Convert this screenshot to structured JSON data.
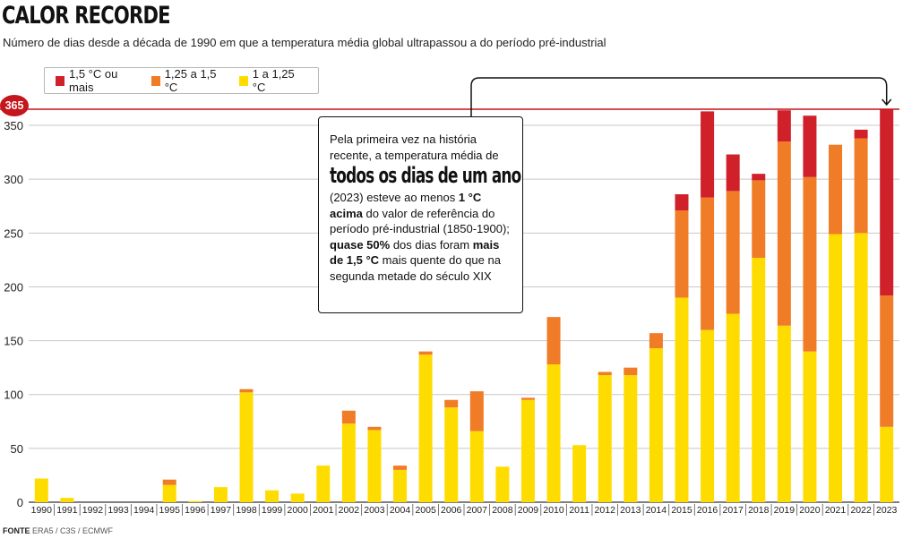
{
  "header": {
    "title": "CALOR RECORDE",
    "subtitle": "Número de dias desde a década de 1990 em que a temperatura média global ultrapassou a do período pré-industrial"
  },
  "legend": [
    {
      "label": "1,5 °C ou mais",
      "color": "#d0202a"
    },
    {
      "label": "1,25 a 1,5 °C",
      "color": "#f07c28"
    },
    {
      "label": "1 a 1,25 °C",
      "color": "#ffdc00"
    }
  ],
  "callout": {
    "line1": "Pela primeira vez na história recente, a temperatura média de",
    "big": "todos os dias de um ano",
    "p1": "(2023) esteve ao menos ",
    "b1": "1 °C acima",
    "p2": " do valor de referência do período pré-industrial (1850-1900); ",
    "b2": "quase 50%",
    "p3": " dos dias foram ",
    "b3": "mais de 1,5 °C",
    "p4": " mais quente do que na segunda metade do século XIX"
  },
  "source": {
    "label": "FONTE",
    "text": "ERA5 / C3S / ECMWF"
  },
  "chart_data": {
    "type": "bar",
    "stacked": true,
    "categories": [
      "1990",
      "1991",
      "1992",
      "1993",
      "1994",
      "1995",
      "1996",
      "1997",
      "1998",
      "1999",
      "2000",
      "2001",
      "2002",
      "2003",
      "2004",
      "2005",
      "2006",
      "2007",
      "2008",
      "2009",
      "2010",
      "2011",
      "2012",
      "2013",
      "2014",
      "2015",
      "2016",
      "2017",
      "2018",
      "2019",
      "2020",
      "2021",
      "2022",
      "2023"
    ],
    "series": [
      {
        "name": "1 a 1,25 °C",
        "color": "#ffdc00",
        "values": [
          22,
          4,
          0,
          0,
          0,
          16,
          1,
          14,
          102,
          11,
          8,
          34,
          73,
          67,
          30,
          137,
          88,
          66,
          33,
          95,
          128,
          53,
          118,
          118,
          143,
          190,
          160,
          175,
          227,
          164,
          140,
          249,
          250,
          70
        ]
      },
      {
        "name": "1,25 a 1,5 °C",
        "color": "#f07c28",
        "values": [
          0,
          0,
          0,
          0,
          0,
          5,
          0,
          0,
          3,
          0,
          0,
          0,
          12,
          3,
          4,
          3,
          7,
          37,
          0,
          2,
          44,
          0,
          3,
          7,
          14,
          81,
          123,
          114,
          72,
          171,
          162,
          83,
          88,
          122
        ]
      },
      {
        "name": "1,5 °C ou mais",
        "color": "#d0202a",
        "values": [
          0,
          0,
          0,
          0,
          0,
          0,
          0,
          0,
          0,
          0,
          0,
          0,
          0,
          0,
          0,
          0,
          0,
          0,
          0,
          0,
          0,
          0,
          0,
          0,
          0,
          15,
          80,
          34,
          6,
          29,
          57,
          0,
          8,
          173
        ]
      }
    ],
    "yticks": [
      0,
      50,
      100,
      150,
      200,
      250,
      300,
      350
    ],
    "ylim": [
      0,
      365
    ],
    "reference_line": {
      "value": 365,
      "label": "365",
      "color": "#c4161c"
    },
    "grid": true
  }
}
